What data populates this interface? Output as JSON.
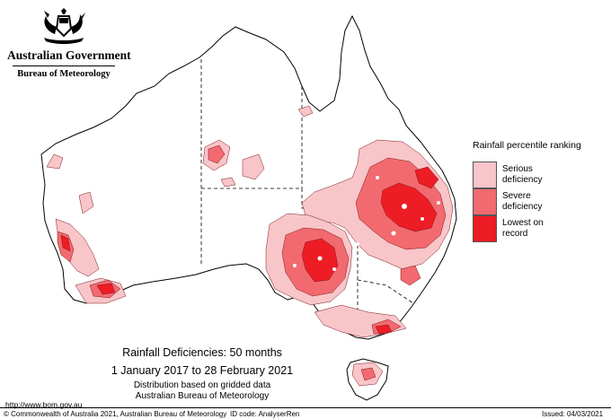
{
  "header": {
    "government": "Australian Government",
    "agency": "Bureau of Meteorology"
  },
  "legend": {
    "title": "Rainfall percentile ranking",
    "items": [
      {
        "label": "Serious deficiency",
        "color": "#f8c5c9"
      },
      {
        "label": "Severe deficiency",
        "color": "#f26a70"
      },
      {
        "label": "Lowest on record",
        "color": "#ee1c24"
      }
    ]
  },
  "caption": {
    "title": "Rainfall Deficiencies: 50 months",
    "dates": "1 January 2017 to 28 February 2021",
    "note1": "Distribution based on gridded data",
    "note2": "Australian Bureau of Meteorology"
  },
  "footer": {
    "url": "http://www.bom.gov.au",
    "copyright": "© Commonwealth of Australia 2021, Australian Bureau of Meteorology",
    "id_code": "ID code: AnalyserRen",
    "issued": "Issued: 04/03/2021"
  },
  "colors": {
    "serious": "#f8c5c9",
    "severe": "#f26a70",
    "record": "#ee1c24",
    "outline": "#000000"
  }
}
